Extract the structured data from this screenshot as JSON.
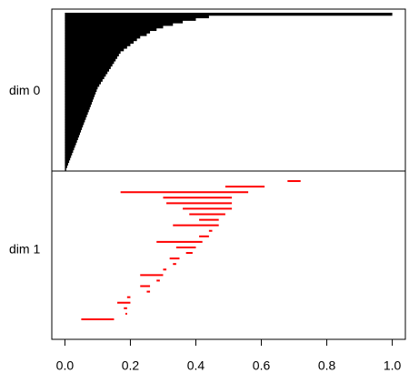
{
  "chart_data": {
    "type": "barcode",
    "xlim": [
      -0.04,
      1.04
    ],
    "xticks": [
      {
        "value": 0,
        "label": "0.0"
      },
      0.2,
      0.4,
      0.6,
      0.8,
      {
        "value": 1,
        "label": "1.0"
      }
    ],
    "panels": [
      {
        "label": "dim 0",
        "color": "#000000",
        "births": [
          0,
          0,
          0,
          0,
          0,
          0,
          0,
          0,
          0,
          0,
          0,
          0,
          0,
          0,
          0,
          0,
          0,
          0,
          0,
          0,
          0,
          0,
          0,
          0,
          0,
          0,
          0,
          0,
          0,
          0,
          0,
          0,
          0,
          0,
          0,
          0,
          0,
          0,
          0,
          0,
          0,
          0,
          0,
          0,
          0,
          0,
          0,
          0,
          0,
          0,
          0,
          0,
          0,
          0,
          0,
          0,
          0,
          0,
          0,
          0,
          0,
          0
        ],
        "deaths": [
          1.0,
          0.44,
          0.4,
          0.36,
          0.33,
          0.3,
          0.28,
          0.26,
          0.25,
          0.23,
          0.22,
          0.21,
          0.2,
          0.19,
          0.18,
          0.17,
          0.165,
          0.16,
          0.155,
          0.15,
          0.145,
          0.14,
          0.135,
          0.13,
          0.125,
          0.12,
          0.115,
          0.11,
          0.105,
          0.1,
          0.097,
          0.094,
          0.091,
          0.088,
          0.085,
          0.082,
          0.079,
          0.076,
          0.073,
          0.07,
          0.067,
          0.064,
          0.061,
          0.058,
          0.055,
          0.052,
          0.049,
          0.046,
          0.043,
          0.04,
          0.037,
          0.034,
          0.031,
          0.028,
          0.025,
          0.022,
          0.019,
          0.016,
          0.013,
          0.01,
          0.007,
          0.004
        ]
      },
      {
        "label": "dim 1",
        "color": "#ff0000",
        "births": [
          0.68,
          0.49,
          0.17,
          0.3,
          0.31,
          0.36,
          0.38,
          0.41,
          0.33,
          0.44,
          0.41,
          0.28,
          0.34,
          0.37,
          0.32,
          0.33,
          0.3,
          0.23,
          0.28,
          0.23,
          0.25,
          0.19,
          0.16,
          0.18,
          0.185,
          0.05
        ],
        "deaths": [
          0.72,
          0.61,
          0.56,
          0.51,
          0.51,
          0.51,
          0.49,
          0.47,
          0.47,
          0.45,
          0.44,
          0.42,
          0.4,
          0.39,
          0.35,
          0.34,
          0.31,
          0.3,
          0.29,
          0.26,
          0.26,
          0.2,
          0.2,
          0.19,
          0.19,
          0.15
        ]
      }
    ]
  }
}
